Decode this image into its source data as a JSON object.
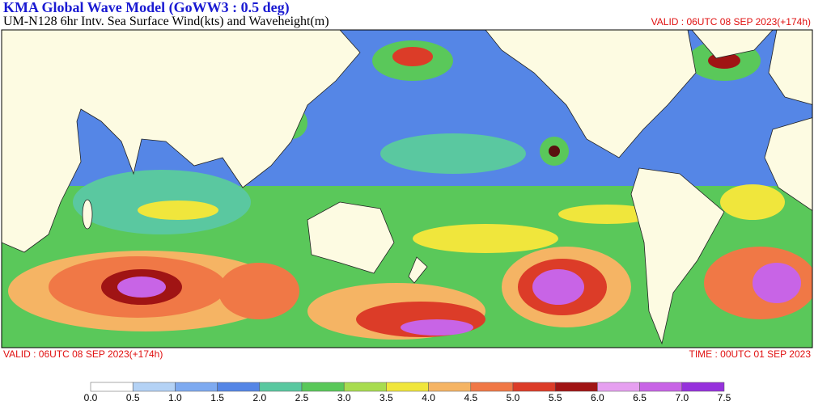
{
  "header": {
    "title": "KMA  Global Wave Model (GoWW3 : 0.5 deg)",
    "subtitle": "UM-N128  6hr Intv. Sea Surface Wind(kts) and Waveheight(m)",
    "valid_top": "VALID : 06UTC 08 SEP 2023(+174h)"
  },
  "footer": {
    "valid": "VALID : 06UTC 08 SEP 2023(+174h)",
    "time": "TIME : 00UTC 01 SEP 2023"
  },
  "legend": {
    "labels": [
      "0.0",
      "0.5",
      "1.0",
      "1.5",
      "2.0",
      "2.5",
      "3.0",
      "3.5",
      "4.0",
      "4.5",
      "5.0",
      "5.5",
      "6.0",
      "6.5",
      "7.0",
      "7.5"
    ],
    "colors": [
      "#ffffff",
      "#b4d2f5",
      "#7eaaf0",
      "#5586e6",
      "#5ac8a0",
      "#5ac85a",
      "#a8dc50",
      "#f0e63c",
      "#f5b464",
      "#f07846",
      "#dc3c28",
      "#a01414",
      "#e6a0f0",
      "#c864e6",
      "#9632dc"
    ]
  }
}
